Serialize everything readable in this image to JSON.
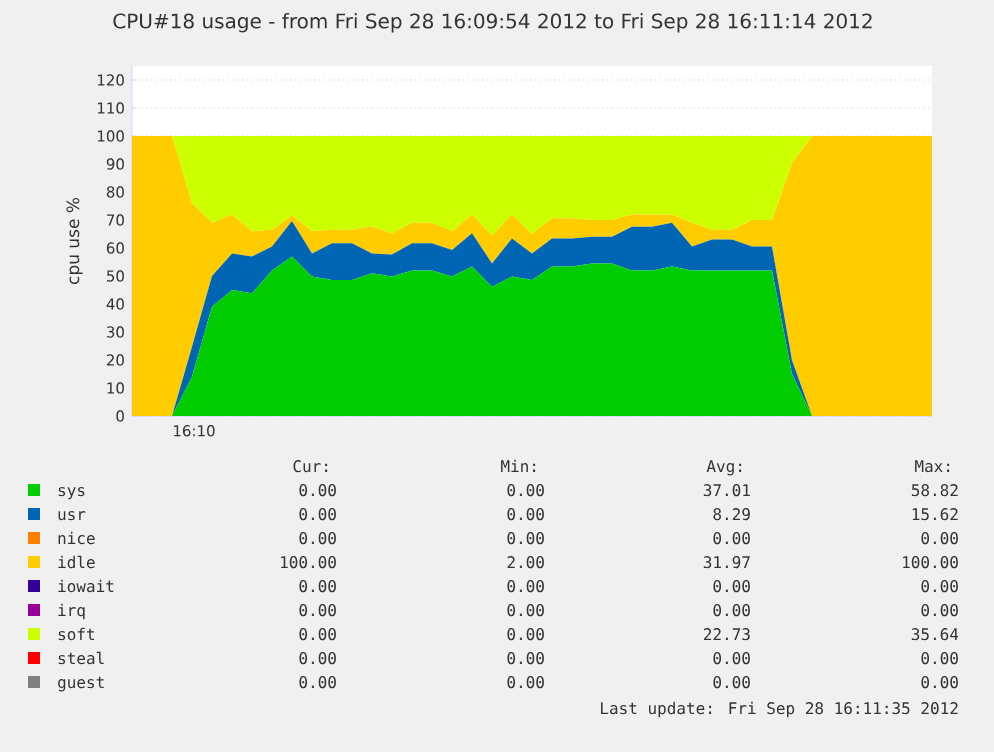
{
  "chart_data": {
    "type": "area",
    "stacked": true,
    "title": "CPU#18 usage - from Fri Sep 28 16:09:54 2012 to Fri Sep 28 16:11:14 2012",
    "ylabel": "cpu use %",
    "categories": [
      null,
      null,
      null,
      null,
      null,
      null,
      null,
      null,
      null,
      null,
      null,
      null,
      null,
      null,
      null,
      null,
      null,
      null,
      null,
      null,
      null,
      null,
      null,
      null,
      null,
      null,
      null,
      null,
      null,
      null,
      null,
      null,
      null,
      null,
      null,
      null,
      null,
      null,
      null,
      null,
      null
    ],
    "series": [
      {
        "name": "sys",
        "color": "#00cc00",
        "values": [
          0,
          0,
          0,
          14,
          39,
          45,
          43.8,
          52,
          57,
          49.8,
          48.6,
          48.6,
          51,
          49.8,
          52,
          52,
          49.8,
          53.4,
          46.2,
          49.8,
          48.6,
          53.4,
          53.4,
          54.5,
          54.5,
          52,
          52,
          53.4,
          52,
          52,
          52,
          52,
          52,
          15,
          0,
          0,
          0,
          0,
          0,
          0,
          0
        ]
      },
      {
        "name": "usr",
        "color": "#0066b3",
        "values": [
          0,
          0,
          0,
          10.7,
          11,
          13,
          13.2,
          8.5,
          12.6,
          8.2,
          13.1,
          13.1,
          7,
          7.9,
          9.7,
          9.7,
          9.5,
          11.9,
          8.3,
          13.6,
          9.4,
          10,
          10,
          9.5,
          9.5,
          15.6,
          15.6,
          15.6,
          8.5,
          11,
          11,
          8.5,
          8.5,
          4.9,
          0,
          0,
          0,
          0,
          0,
          0,
          0
        ]
      },
      {
        "name": "nice",
        "color": "#ff8000",
        "values": [
          null,
          null,
          null,
          null,
          null,
          null,
          null,
          null,
          null,
          null,
          null,
          null,
          null,
          null,
          null,
          null,
          null,
          null,
          null,
          null,
          null,
          null,
          null,
          null,
          null,
          null,
          null,
          null,
          null,
          null,
          null,
          null,
          null,
          null,
          null,
          null,
          null,
          null,
          null,
          null,
          null
        ]
      },
      {
        "name": "idle",
        "color": "#ffcc00",
        "values": [
          100,
          100,
          100,
          51.3,
          19,
          14,
          9,
          6,
          2.1,
          8,
          4.8,
          4.8,
          9.7,
          7.6,
          7.3,
          7.3,
          6.7,
          6.7,
          9.9,
          8.6,
          7,
          7.2,
          7.2,
          6,
          6,
          4.4,
          4.4,
          3,
          8.5,
          3.5,
          3.5,
          9.5,
          9.5,
          70.5,
          100,
          100,
          100,
          100,
          100,
          100,
          100
        ]
      },
      {
        "name": "iowait",
        "color": "#330099",
        "values": [
          null,
          null,
          null,
          null,
          null,
          null,
          null,
          null,
          null,
          null,
          null,
          null,
          null,
          null,
          null,
          null,
          null,
          null,
          null,
          null,
          null,
          null,
          null,
          null,
          null,
          null,
          null,
          null,
          null,
          null,
          null,
          null,
          null,
          null,
          null,
          null,
          null,
          null,
          null,
          null,
          null
        ]
      },
      {
        "name": "irq",
        "color": "#990099",
        "values": [
          null,
          null,
          null,
          null,
          null,
          null,
          null,
          null,
          null,
          null,
          null,
          null,
          null,
          null,
          null,
          null,
          null,
          null,
          null,
          null,
          null,
          null,
          null,
          null,
          null,
          null,
          null,
          null,
          null,
          null,
          null,
          null,
          null,
          null,
          null,
          null,
          null,
          null,
          null,
          null,
          null
        ]
      },
      {
        "name": "soft",
        "color": "#ccff00",
        "values": [
          0,
          0,
          0,
          24,
          31,
          28,
          34,
          33.5,
          28.3,
          34,
          33.5,
          33.5,
          32.3,
          34.7,
          31,
          31,
          34,
          28,
          35.6,
          28,
          35,
          29.4,
          29.4,
          30,
          30,
          28,
          28,
          28,
          31,
          33.5,
          33.5,
          30,
          30,
          9.6,
          0,
          0,
          0,
          0,
          0,
          0,
          0
        ]
      },
      {
        "name": "steal",
        "color": "#ff0000",
        "values": [
          null,
          null,
          null,
          null,
          null,
          null,
          null,
          null,
          null,
          null,
          null,
          null,
          null,
          null,
          null,
          null,
          null,
          null,
          null,
          null,
          null,
          null,
          null,
          null,
          null,
          null,
          null,
          null,
          null,
          null,
          null,
          null,
          null,
          null,
          null,
          null,
          null,
          null,
          null,
          null,
          null
        ]
      },
      {
        "name": "guest",
        "color": "#808080",
        "values": [
          null,
          null,
          null,
          null,
          null,
          null,
          null,
          null,
          null,
          null,
          null,
          null,
          null,
          null,
          null,
          null,
          null,
          null,
          null,
          null,
          null,
          null,
          null,
          null,
          null,
          null,
          null,
          null,
          null,
          null,
          null,
          null,
          null,
          null,
          null,
          null,
          null,
          null,
          null,
          null,
          null
        ]
      }
    ],
    "ylim": [
      0,
      125
    ],
    "yticks": [
      0,
      10,
      20,
      30,
      40,
      50,
      60,
      70,
      80,
      90,
      100,
      110,
      120
    ],
    "grid": "y",
    "legend": "bottom",
    "annotations": [
      "Cur:",
      "Min:",
      "Avg:",
      "Max:",
      "0.00",
      "0.00",
      "37.01",
      "58.82",
      "0.00",
      "0.00",
      "8.29",
      "15.62",
      "0.00",
      "0.00",
      "0.00",
      "0.00",
      "100.00",
      "2.00",
      "31.97",
      "100.00",
      "0.00",
      "0.00",
      "0.00",
      "0.00",
      "0.00",
      "0.00",
      "0.00",
      "0.00",
      "0.00",
      "0.00",
      "22.73",
      "35.64",
      "0.00",
      "0.00",
      "0.00",
      "0.00",
      "0.00",
      "0.00",
      "0.00",
      "0.00",
      "Last update: Fri Sep 28 16:11:35 2012",
      "16:10"
    ]
  }
}
